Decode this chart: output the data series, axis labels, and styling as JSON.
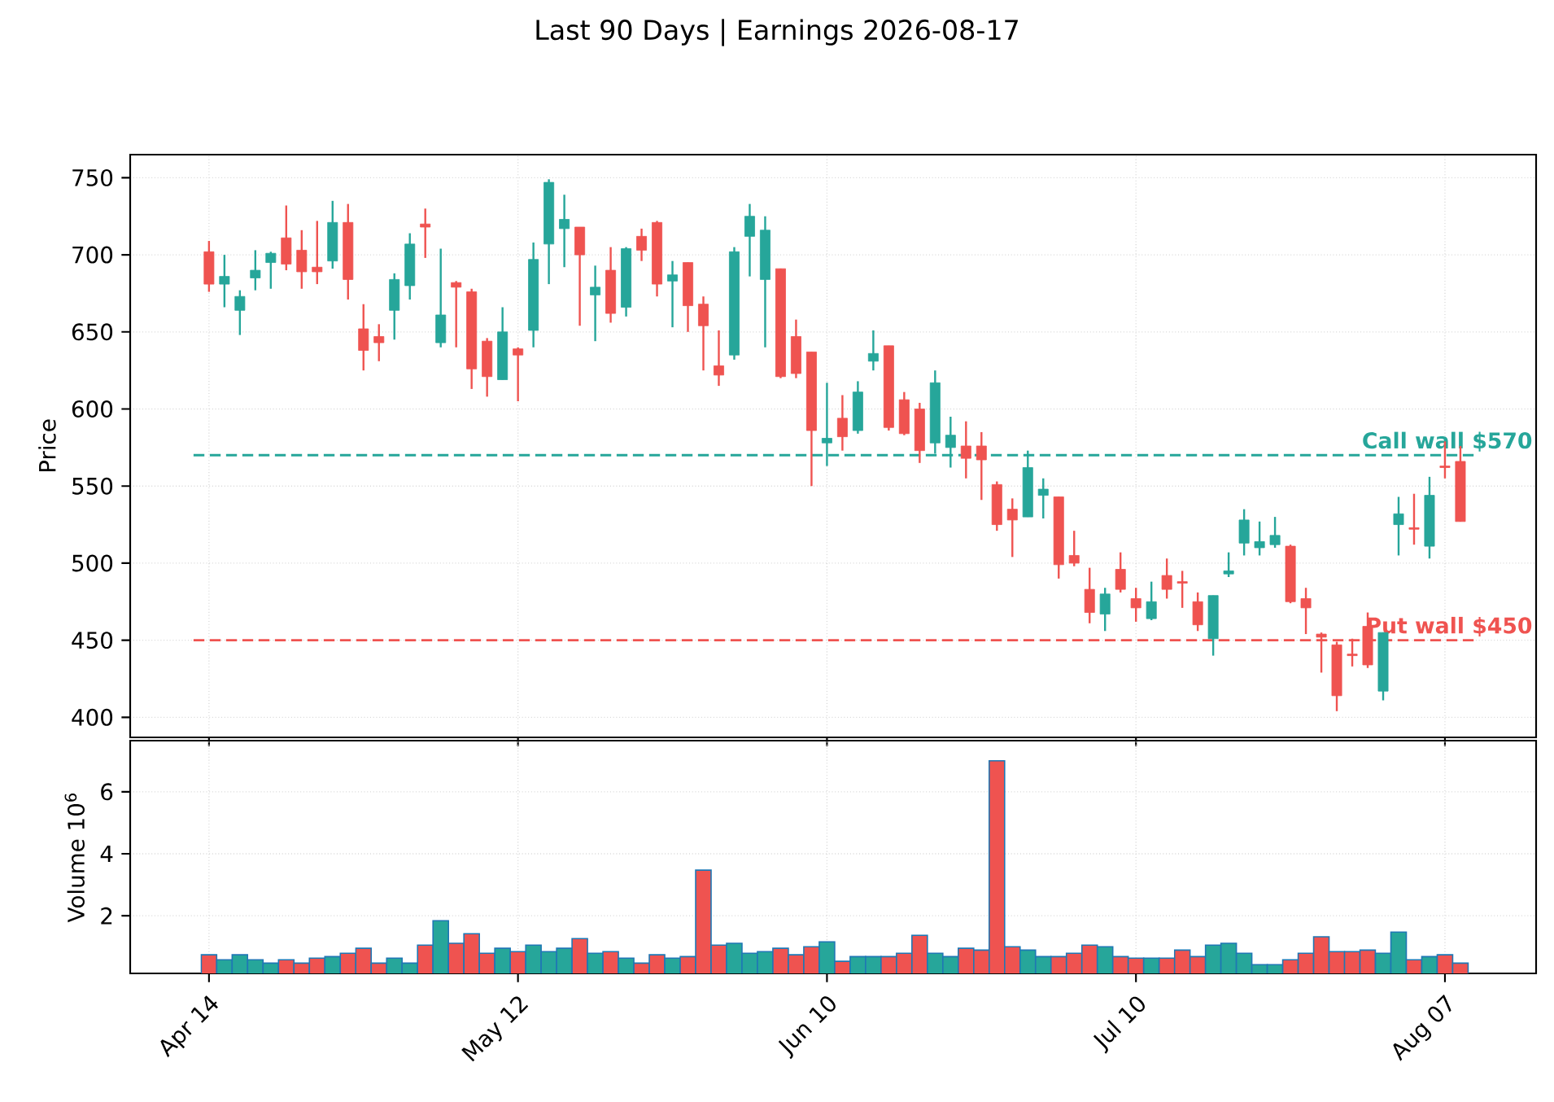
{
  "chart_data": [
    {
      "type": "candlestick",
      "title": "Last 90 Days | Earnings 2026-08-17",
      "ylabel": "Price",
      "categories": [
        null,
        null,
        null,
        null,
        null,
        null,
        null,
        null,
        null,
        null,
        null,
        null,
        null,
        null,
        null,
        null,
        null,
        null,
        null,
        null,
        null,
        null,
        null,
        null,
        null,
        null,
        null,
        null,
        null,
        null,
        null,
        null,
        null,
        null,
        null,
        null,
        null,
        null,
        null,
        null,
        null,
        null,
        null,
        null,
        null,
        null,
        null,
        null,
        null,
        null,
        null,
        null,
        null,
        null,
        null,
        null,
        null,
        null,
        null,
        null,
        null,
        null,
        null,
        null,
        null,
        null,
        null,
        null,
        null,
        null,
        null,
        null,
        null,
        null,
        null,
        null,
        null,
        null,
        null,
        null,
        null,
        null
      ],
      "ohlc": [
        [
          702,
          709,
          676,
          681
        ],
        [
          681,
          700,
          666,
          686
        ],
        [
          664,
          677,
          648,
          673
        ],
        [
          685,
          703,
          677,
          690
        ],
        [
          695,
          702,
          678,
          701
        ],
        [
          711,
          732,
          690,
          694
        ],
        [
          703,
          716,
          678,
          689
        ],
        [
          692,
          722,
          681,
          689
        ],
        [
          696,
          735,
          691,
          721
        ],
        [
          721,
          733,
          671,
          684
        ],
        [
          652,
          668,
          625,
          638
        ],
        [
          647,
          655,
          631,
          643
        ],
        [
          664,
          688,
          645,
          684
        ],
        [
          680,
          714,
          671,
          707
        ],
        [
          720,
          730,
          698,
          718
        ],
        [
          643,
          704,
          640,
          661
        ],
        [
          682,
          683,
          640,
          679
        ],
        [
          676,
          678,
          613,
          626
        ],
        [
          644,
          646,
          608,
          621
        ],
        [
          619,
          666,
          619,
          650
        ],
        [
          639,
          640,
          605,
          635
        ],
        [
          651,
          708,
          640,
          697
        ],
        [
          707,
          749,
          681,
          747
        ],
        [
          717,
          739,
          692,
          723
        ],
        [
          718,
          718,
          654,
          700
        ],
        [
          674,
          693,
          644,
          679
        ],
        [
          690,
          705,
          656,
          662
        ],
        [
          666,
          705,
          660,
          704
        ],
        [
          712,
          717,
          696,
          703
        ],
        [
          721,
          722,
          673,
          681
        ],
        [
          683,
          696,
          653,
          687
        ],
        [
          695,
          695,
          650,
          667
        ],
        [
          668,
          673,
          625,
          654
        ],
        [
          628,
          651,
          615,
          622
        ],
        [
          635,
          705,
          632,
          702
        ],
        [
          712,
          733,
          686,
          725
        ],
        [
          684,
          725,
          640,
          716
        ],
        [
          691,
          691,
          620,
          621
        ],
        [
          647,
          658,
          620,
          623
        ],
        [
          637,
          637,
          550,
          586
        ],
        [
          578,
          617,
          563,
          581
        ],
        [
          594,
          609,
          573,
          582
        ],
        [
          586,
          618,
          584,
          611
        ],
        [
          631,
          651,
          625,
          636
        ],
        [
          641,
          641,
          586,
          588
        ],
        [
          606,
          611,
          583,
          584
        ],
        [
          600,
          604,
          565,
          573
        ],
        [
          578,
          625,
          571,
          617
        ],
        [
          575,
          595,
          562,
          583
        ],
        [
          576,
          592,
          555,
          568
        ],
        [
          576,
          585,
          541,
          567
        ],
        [
          551,
          553,
          521,
          525
        ],
        [
          535,
          542,
          504,
          528
        ],
        [
          530,
          573,
          530,
          562
        ],
        [
          544,
          555,
          529,
          548
        ],
        [
          543,
          543,
          490,
          499
        ],
        [
          505,
          521,
          498,
          500
        ],
        [
          483,
          497,
          461,
          468
        ],
        [
          467,
          484,
          456,
          480
        ],
        [
          496,
          507,
          481,
          483
        ],
        [
          477,
          484,
          462,
          471
        ],
        [
          464,
          488,
          463,
          475
        ],
        [
          492,
          503,
          477,
          483
        ],
        [
          488,
          495,
          471,
          487
        ],
        [
          475,
          481,
          456,
          460
        ],
        [
          451,
          479,
          440,
          479
        ],
        [
          493,
          507,
          491,
          495
        ],
        [
          513,
          535,
          505,
          528
        ],
        [
          510,
          527,
          505,
          514
        ],
        [
          512,
          530,
          510,
          518
        ],
        [
          511,
          512,
          474,
          475
        ],
        [
          477,
          484,
          454,
          471
        ],
        [
          454,
          455,
          429,
          452
        ],
        [
          447,
          449,
          404,
          414
        ],
        [
          441,
          451,
          433,
          440
        ],
        [
          459,
          468,
          432,
          434
        ],
        [
          417,
          455,
          411,
          455
        ],
        [
          525,
          543,
          505,
          532
        ],
        [
          523,
          545,
          512,
          522
        ],
        [
          511,
          556,
          503,
          544
        ],
        [
          563,
          579,
          555,
          562
        ],
        [
          566,
          576,
          527,
          527
        ]
      ],
      "colors": [
        "#ef5350",
        "#26a69a",
        "#26a69a",
        "#26a69a",
        "#26a69a",
        "#ef5350",
        "#ef5350",
        "#ef5350",
        "#26a69a",
        "#ef5350",
        "#ef5350",
        "#ef5350",
        "#26a69a",
        "#26a69a",
        "#ef5350",
        "#26a69a",
        "#ef5350",
        "#ef5350",
        "#ef5350",
        "#26a69a",
        "#ef5350",
        "#26a69a",
        "#26a69a",
        "#26a69a",
        "#ef5350",
        "#26a69a",
        "#ef5350",
        "#26a69a",
        "#ef5350",
        "#ef5350",
        "#26a69a",
        "#ef5350",
        "#ef5350",
        "#ef5350",
        "#26a69a",
        "#26a69a",
        "#26a69a",
        "#ef5350",
        "#ef5350",
        "#ef5350",
        "#26a69a",
        "#ef5350",
        "#26a69a",
        "#26a69a",
        "#ef5350",
        "#ef5350",
        "#ef5350",
        "#26a69a",
        "#26a69a",
        "#ef5350",
        "#ef5350",
        "#ef5350",
        "#ef5350",
        "#26a69a",
        "#26a69a",
        "#ef5350",
        "#ef5350",
        "#ef5350",
        "#26a69a",
        "#ef5350",
        "#ef5350",
        "#26a69a",
        "#ef5350",
        "#ef5350",
        "#ef5350",
        "#26a69a",
        "#26a69a",
        "#26a69a",
        "#26a69a",
        "#26a69a",
        "#ef5350",
        "#ef5350",
        "#ef5350",
        "#ef5350",
        "#ef5350",
        "#ef5350",
        "#26a69a",
        "#26a69a",
        "#ef5350",
        "#26a69a",
        "#ef5350",
        "#ef5350"
      ],
      "ylim": [
        387,
        765
      ],
      "yticks": [
        400,
        450,
        500,
        550,
        600,
        650,
        700,
        750
      ],
      "ref_lines": [
        {
          "axis": "y",
          "value": 570,
          "label": "Call wall $570",
          "color": "#26a69a",
          "line_style": "dashed"
        },
        {
          "axis": "y",
          "value": 450,
          "label": "Put wall $450",
          "color": "#ef5350",
          "line_style": "dashed"
        }
      ],
      "grid": true,
      "tick_labels": "y"
    },
    {
      "type": "bar",
      "ylabel": "Volume  10$^{6}$",
      "categories": [
        "Apr 14",
        null,
        null,
        null,
        null,
        null,
        null,
        null,
        null,
        null,
        null,
        null,
        null,
        null,
        null,
        null,
        null,
        null,
        null,
        null,
        "May 12",
        null,
        null,
        null,
        null,
        null,
        null,
        null,
        null,
        null,
        null,
        null,
        null,
        null,
        null,
        null,
        null,
        null,
        null,
        null,
        "Jun 10",
        null,
        null,
        null,
        null,
        null,
        null,
        null,
        null,
        null,
        null,
        null,
        null,
        null,
        null,
        null,
        null,
        null,
        null,
        null,
        "Jul 10",
        null,
        null,
        null,
        null,
        null,
        null,
        null,
        null,
        null,
        null,
        null,
        null,
        null,
        null,
        null,
        null,
        null,
        null,
        null,
        "Aug 07",
        null
      ],
      "values": [
        0.74,
        0.58,
        0.74,
        0.58,
        0.47,
        0.58,
        0.47,
        0.63,
        0.68,
        0.79,
        0.95,
        0.47,
        0.63,
        0.47,
        1.05,
        1.84,
        1.11,
        1.42,
        0.79,
        0.95,
        0.84,
        1.05,
        0.84,
        0.95,
        1.26,
        0.79,
        0.84,
        0.63,
        0.47,
        0.74,
        0.63,
        0.68,
        3.47,
        1.05,
        1.11,
        0.79,
        0.84,
        0.95,
        0.74,
        1.0,
        1.16,
        0.53,
        0.68,
        0.68,
        0.68,
        0.79,
        1.37,
        0.79,
        0.68,
        0.95,
        0.89,
        7.0,
        1.0,
        0.89,
        0.68,
        0.68,
        0.79,
        1.05,
        1.0,
        0.68,
        0.63,
        0.63,
        0.63,
        0.89,
        0.68,
        1.05,
        1.11,
        0.79,
        0.42,
        0.42,
        0.58,
        0.79,
        1.32,
        0.84,
        0.84,
        0.89,
        0.79,
        1.47,
        0.58,
        0.68,
        0.74,
        0.47
      ],
      "colors": [
        "#ef5350",
        "#26a69a",
        "#26a69a",
        "#26a69a",
        "#26a69a",
        "#ef5350",
        "#ef5350",
        "#ef5350",
        "#26a69a",
        "#ef5350",
        "#ef5350",
        "#ef5350",
        "#26a69a",
        "#26a69a",
        "#ef5350",
        "#26a69a",
        "#ef5350",
        "#ef5350",
        "#ef5350",
        "#26a69a",
        "#ef5350",
        "#26a69a",
        "#26a69a",
        "#26a69a",
        "#ef5350",
        "#26a69a",
        "#ef5350",
        "#26a69a",
        "#ef5350",
        "#ef5350",
        "#26a69a",
        "#ef5350",
        "#ef5350",
        "#ef5350",
        "#26a69a",
        "#26a69a",
        "#26a69a",
        "#ef5350",
        "#ef5350",
        "#ef5350",
        "#26a69a",
        "#ef5350",
        "#26a69a",
        "#26a69a",
        "#ef5350",
        "#ef5350",
        "#ef5350",
        "#26a69a",
        "#26a69a",
        "#ef5350",
        "#ef5350",
        "#ef5350",
        "#ef5350",
        "#26a69a",
        "#26a69a",
        "#ef5350",
        "#ef5350",
        "#ef5350",
        "#26a69a",
        "#ef5350",
        "#ef5350",
        "#26a69a",
        "#ef5350",
        "#ef5350",
        "#ef5350",
        "#26a69a",
        "#26a69a",
        "#26a69a",
        "#26a69a",
        "#26a69a",
        "#ef5350",
        "#ef5350",
        "#ef5350",
        "#ef5350",
        "#ef5350",
        "#ef5350",
        "#26a69a",
        "#26a69a",
        "#ef5350",
        "#26a69a",
        "#ef5350",
        "#ef5350"
      ],
      "ylim": [
        0.14,
        7.65
      ],
      "yticks": [
        2,
        4,
        6
      ],
      "grid": true
    }
  ]
}
